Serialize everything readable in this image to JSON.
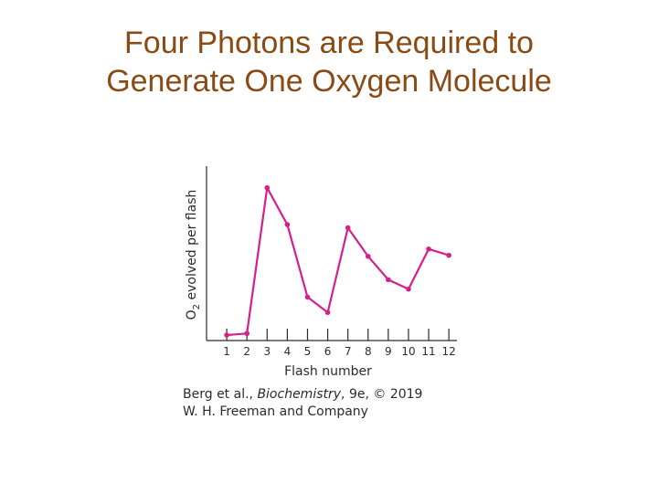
{
  "title": {
    "line1": "Four Photons are Required to",
    "line2": "Generate One Oxygen Molecule"
  },
  "credit": {
    "authors": "Berg et al., ",
    "book": "Biochemistry",
    "edition": ", 9e, © 2019",
    "publisher": "W. H. Freeman and Company"
  },
  "chart_data": {
    "type": "line",
    "title": "",
    "xlabel": "Flash number",
    "ylabel_main": "O",
    "ylabel_subscript": "2",
    "ylabel_rest": " evolved per flash",
    "x": [
      1,
      2,
      3,
      4,
      5,
      6,
      7,
      8,
      9,
      10,
      11,
      12
    ],
    "xticks": [
      "1",
      "2",
      "3",
      "4",
      "5",
      "6",
      "7",
      "8",
      "9",
      "10",
      "11",
      "12"
    ],
    "series": [
      {
        "values": [
          0.0,
          0.6,
          56.7,
          42.5,
          14.6,
          8.7,
          41.3,
          30.3,
          21.3,
          17.7,
          33.1,
          30.7
        ]
      }
    ],
    "xlim": [
      0,
      12.4
    ],
    "ylim": [
      0,
      65
    ],
    "yticks_shown": false,
    "grid": false,
    "line_color": "#d61f8c",
    "axis_color": "#2b2b2b"
  }
}
